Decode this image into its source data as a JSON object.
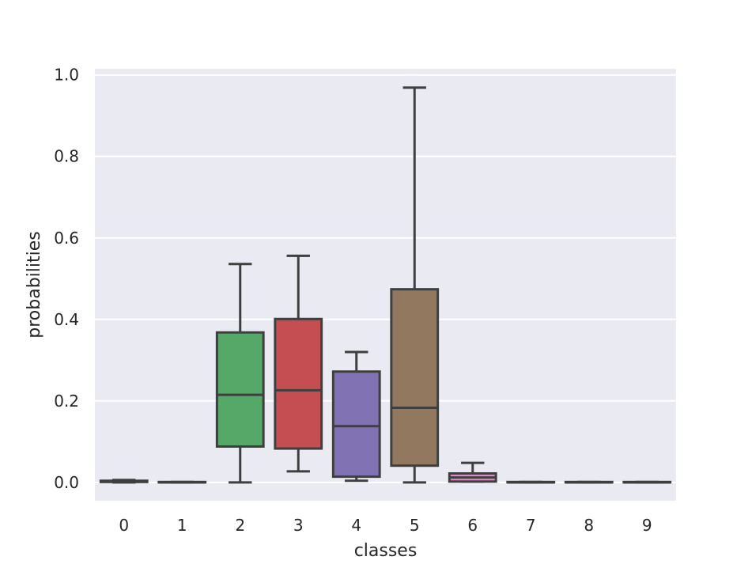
{
  "chart_data": {
    "type": "boxplot",
    "title": "",
    "xlabel": "classes",
    "ylabel": "probabilities",
    "ylim": [
      -0.045,
      1.015
    ],
    "yticks": [
      "0.0",
      "0.2",
      "0.4",
      "0.6",
      "0.8",
      "1.0"
    ],
    "grid": true,
    "categories": [
      "0",
      "1",
      "2",
      "3",
      "4",
      "5",
      "6",
      "7",
      "8",
      "9"
    ],
    "boxes": [
      {
        "category": "0",
        "whisker_low": 0.0,
        "q1": 0.001,
        "median": 0.002,
        "q3": 0.004,
        "whisker_high": 0.006,
        "color": "#4c72b0"
      },
      {
        "category": "1",
        "whisker_low": 0.0,
        "q1": 0.0,
        "median": 0.0,
        "q3": 0.001,
        "whisker_high": 0.001,
        "color": "#dd8452"
      },
      {
        "category": "2",
        "whisker_low": 0.0,
        "q1": 0.088,
        "median": 0.215,
        "q3": 0.368,
        "whisker_high": 0.536,
        "color": "#55a868"
      },
      {
        "category": "3",
        "whisker_low": 0.027,
        "q1": 0.083,
        "median": 0.226,
        "q3": 0.401,
        "whisker_high": 0.556,
        "color": "#c44e52"
      },
      {
        "category": "4",
        "whisker_low": 0.004,
        "q1": 0.014,
        "median": 0.138,
        "q3": 0.272,
        "whisker_high": 0.32,
        "color": "#8172b3"
      },
      {
        "category": "5",
        "whisker_low": 0.0,
        "q1": 0.041,
        "median": 0.183,
        "q3": 0.474,
        "whisker_high": 0.969,
        "color": "#937860"
      },
      {
        "category": "6",
        "whisker_low": 0.002,
        "q1": 0.002,
        "median": 0.012,
        "q3": 0.022,
        "whisker_high": 0.048,
        "color": "#da8bc3"
      },
      {
        "category": "7",
        "whisker_low": 0.0,
        "q1": 0.0,
        "median": 0.0,
        "q3": 0.001,
        "whisker_high": 0.001,
        "color": "#8c8c8c"
      },
      {
        "category": "8",
        "whisker_low": 0.0,
        "q1": 0.0,
        "median": 0.0,
        "q3": 0.001,
        "whisker_high": 0.001,
        "color": "#ccb974"
      },
      {
        "category": "9",
        "whisker_low": 0.0,
        "q1": 0.0,
        "median": 0.0,
        "q3": 0.001,
        "whisker_high": 0.001,
        "color": "#64b5cd"
      }
    ],
    "style": {
      "background": "#eaeaf2",
      "grid_color": "#ffffff",
      "line_color": "#3f3f3f",
      "text_color": "#262626"
    }
  }
}
